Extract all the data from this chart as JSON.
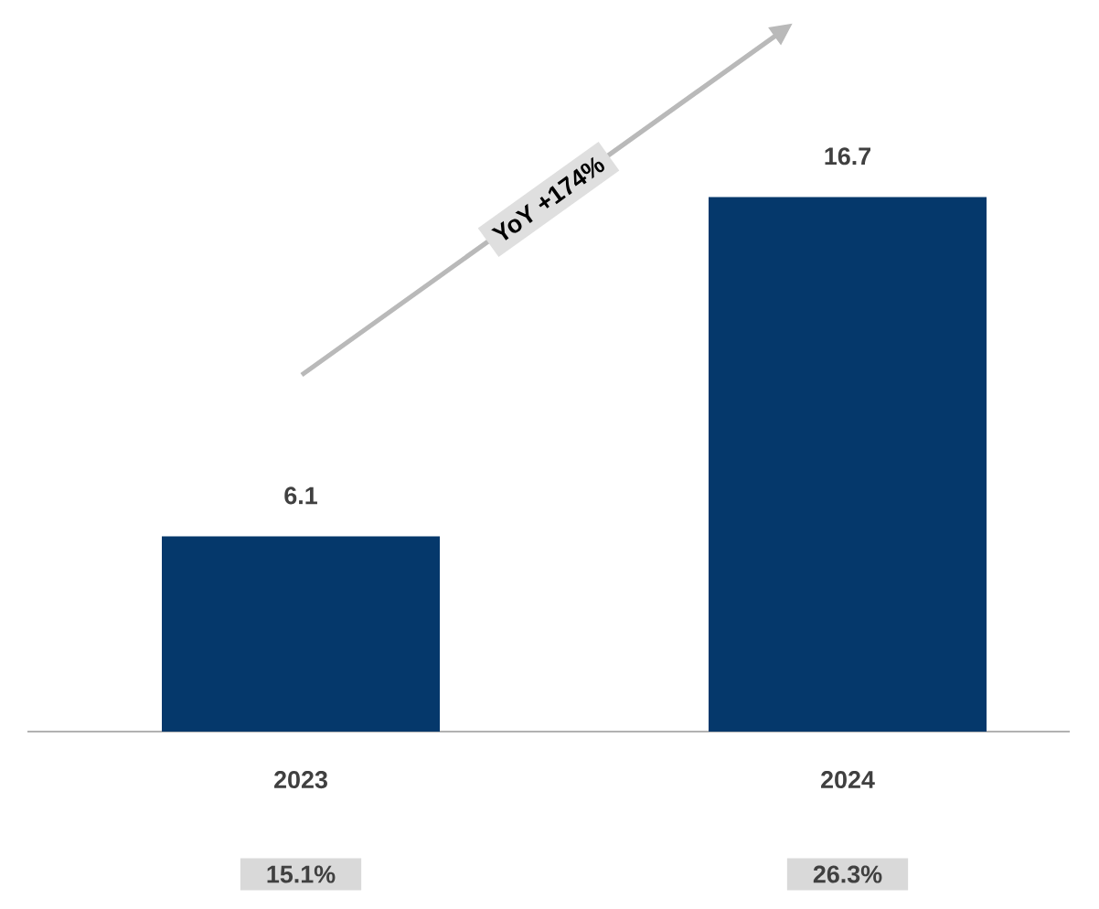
{
  "chart_data": {
    "type": "bar",
    "categories": [
      "2023",
      "2024"
    ],
    "values": [
      6.1,
      16.7
    ],
    "color": "#05386b",
    "data_labels": true,
    "annotations": [
      "YoY +174%",
      "15.1%",
      "26.3%"
    ]
  }
}
